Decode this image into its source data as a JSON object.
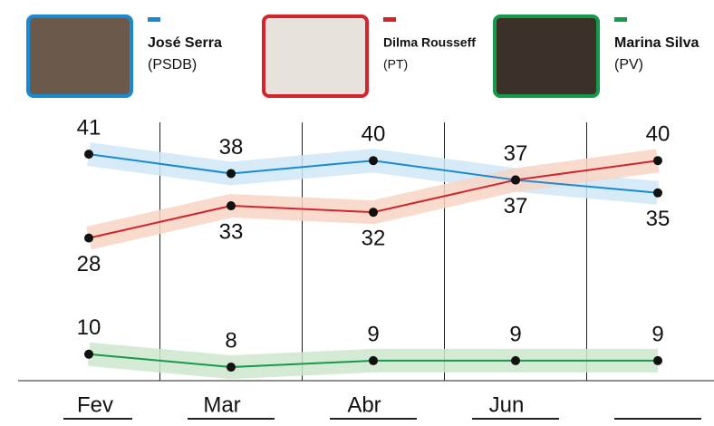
{
  "chart_data": {
    "type": "line",
    "categories": [
      "Fev",
      "Mar",
      "Abr",
      "Jun",
      null
    ],
    "series": [
      {
        "name": "José Serra",
        "party": "(PSDB)",
        "color": "#1a8ad0",
        "band_color": "#cfe7f6",
        "values": [
          41,
          38,
          40,
          37,
          35
        ]
      },
      {
        "name": "Dilma Rousseff",
        "party": "(PT)",
        "color": "#d3232b",
        "band_color": "#f8d5c6",
        "values": [
          28,
          33,
          32,
          37,
          40
        ]
      },
      {
        "name": "Marina Silva",
        "party": "(PV)",
        "color": "#159a4a",
        "band_color": "#cde6cd",
        "values": [
          10,
          8,
          9,
          9,
          9
        ]
      }
    ]
  }
}
